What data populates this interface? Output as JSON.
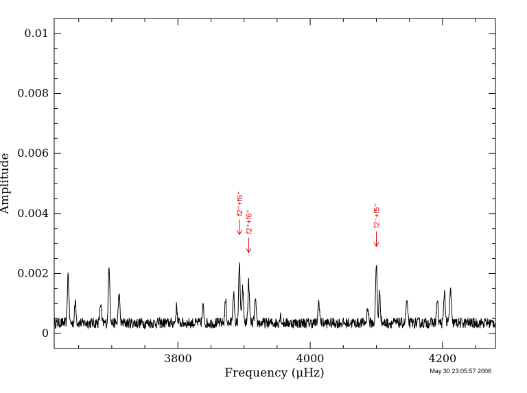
{
  "chart_data": {
    "type": "line",
    "title": "",
    "xlabel": "Frequency (μHz)",
    "ylabel": "Amplitude",
    "xlim": [
      3613,
      4280
    ],
    "ylim": [
      -0.0005,
      0.0105
    ],
    "x_ticks": [
      3800,
      4000,
      4200
    ],
    "x_tick_labels": [
      "3800",
      "4000",
      "4200"
    ],
    "y_ticks": [
      0,
      0.002,
      0.004,
      0.006,
      0.008,
      0.01
    ],
    "y_tick_labels": [
      "0",
      "0.002",
      "0.004",
      "0.006",
      "0.008",
      "0.01"
    ],
    "grid": false,
    "series": [
      {
        "color": "#000000",
        "baseline": 0.00035,
        "noise": 0.00018,
        "peaks": [
          {
            "x": 3634,
            "y": 0.002
          },
          {
            "x": 3645,
            "y": 0.0011
          },
          {
            "x": 3683,
            "y": 0.001
          },
          {
            "x": 3696,
            "y": 0.0023
          },
          {
            "x": 3711,
            "y": 0.0013
          },
          {
            "x": 3798,
            "y": 0.0009
          },
          {
            "x": 3838,
            "y": 0.0009
          },
          {
            "x": 3872,
            "y": 0.0011
          },
          {
            "x": 3884,
            "y": 0.0014
          },
          {
            "x": 3893,
            "y": 0.0023
          },
          {
            "x": 3898,
            "y": 0.0015
          },
          {
            "x": 3907,
            "y": 0.0017
          },
          {
            "x": 3917,
            "y": 0.0011
          },
          {
            "x": 3955,
            "y": 0.0006
          },
          {
            "x": 4013,
            "y": 0.0011
          },
          {
            "x": 4087,
            "y": 0.0009
          },
          {
            "x": 4100,
            "y": 0.0023
          },
          {
            "x": 4105,
            "y": 0.0014
          },
          {
            "x": 4146,
            "y": 0.0011
          },
          {
            "x": 4192,
            "y": 0.0011
          },
          {
            "x": 4203,
            "y": 0.0014
          },
          {
            "x": 4212,
            "y": 0.0015
          }
        ]
      }
    ],
    "annotations": [
      {
        "text": "f2⁻+f6⁺",
        "x": 3893,
        "y": 0.0033,
        "color": "#e00000"
      },
      {
        "text": "f2⁺+f6⁺",
        "x": 3907,
        "y": 0.0027,
        "color": "#e00000"
      },
      {
        "text": "f2⁻+f5⁺",
        "x": 4100,
        "y": 0.0029,
        "color": "#e00000"
      }
    ]
  },
  "footer": {
    "timestamp": "May 30 23:05:57 2006"
  }
}
